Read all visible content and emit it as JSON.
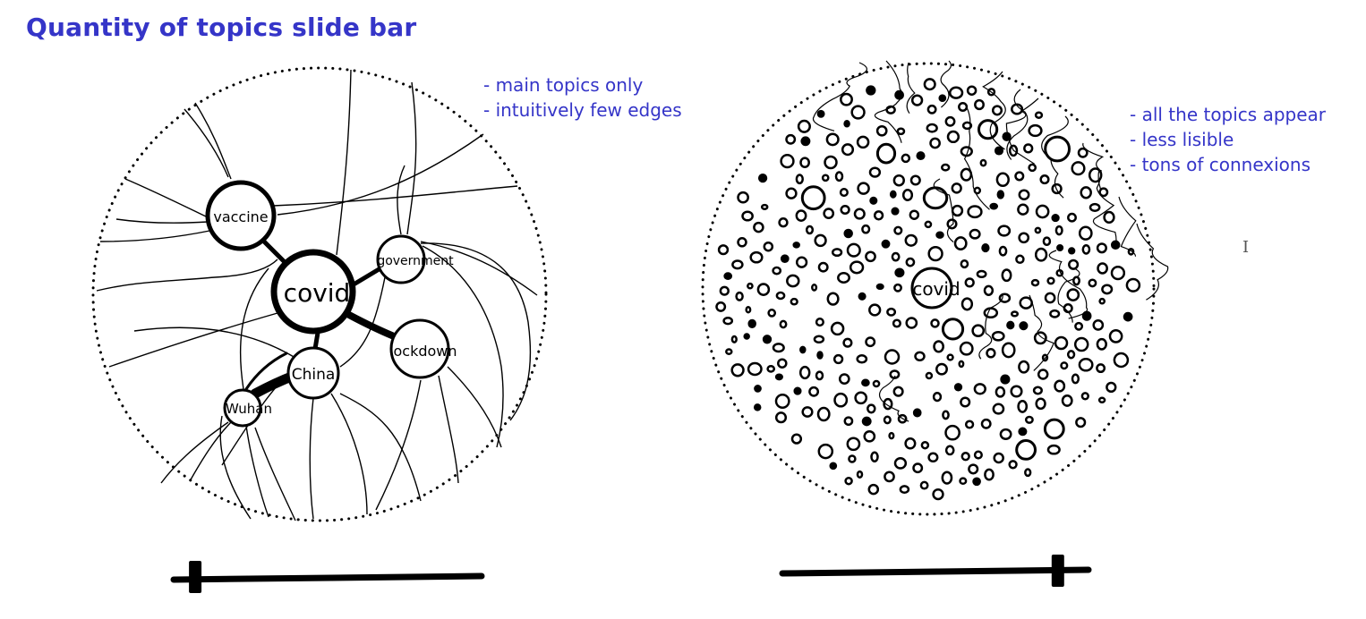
{
  "title": "Quantity of topics slide bar",
  "left_panel": {
    "notes": [
      "- main topics only",
      "- intuitively few edges"
    ],
    "nodes": [
      {
        "label": "vaccine"
      },
      {
        "label": "covid"
      },
      {
        "label": "government"
      },
      {
        "label": "lockdown",
        "shown_as": "ockdown"
      },
      {
        "label": "China"
      },
      {
        "label": "Wuhan"
      }
    ],
    "slider_level": 0.07
  },
  "right_panel": {
    "notes": [
      "- all the topics appear",
      "- less lisible",
      "- tons of connexions"
    ],
    "center_label": "covid",
    "slider_level": 0.9
  },
  "cursor_icon": "text-cursor-icon",
  "colors": {
    "accent": "#3535c8",
    "ink": "#000000"
  }
}
